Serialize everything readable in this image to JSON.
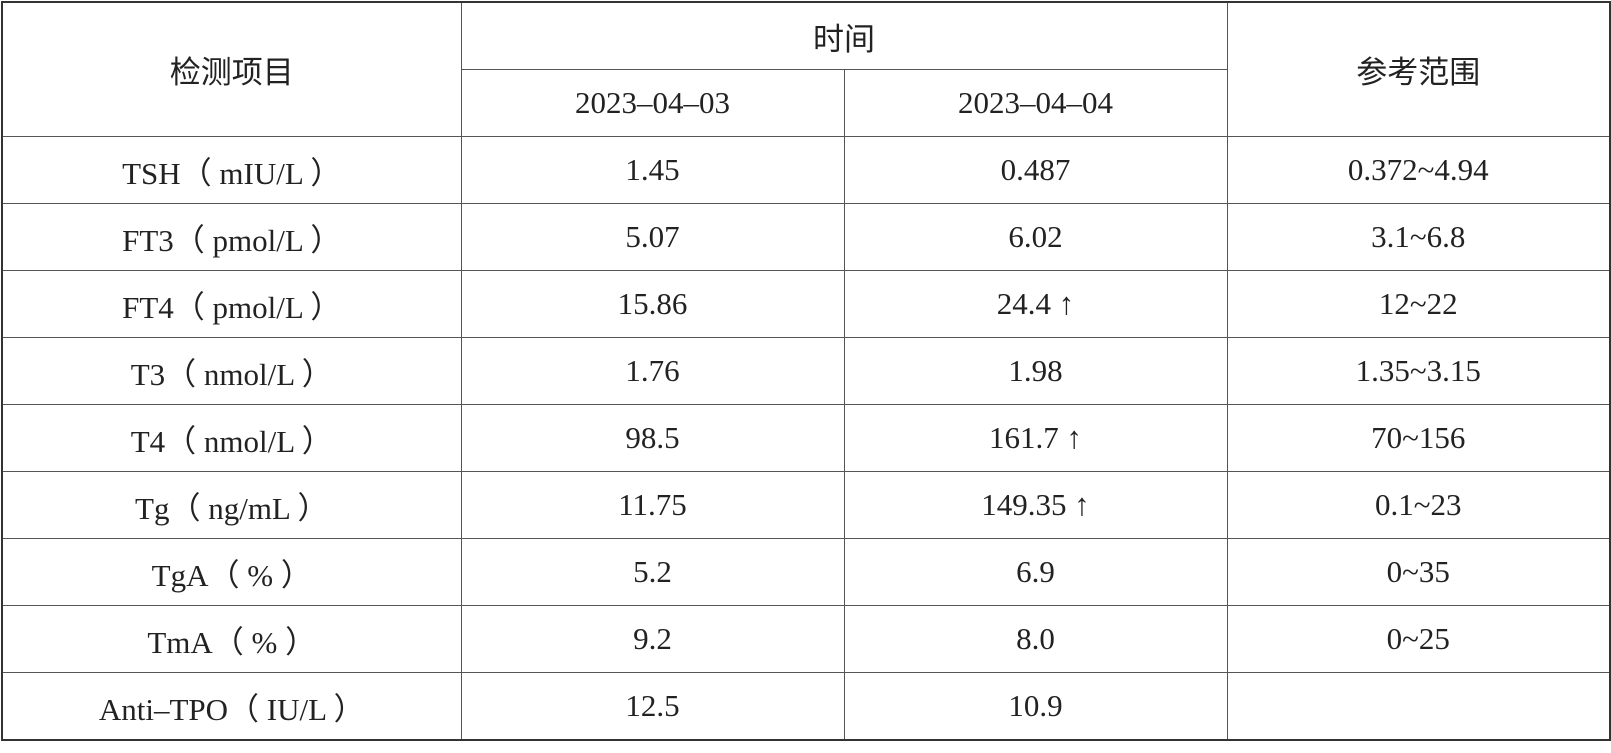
{
  "table": {
    "header": {
      "item": "检测项目",
      "time": "时间",
      "dates": [
        "2023–04–03",
        "2023–04–04"
      ],
      "reference": "参考范围"
    },
    "rows": [
      [
        "TSH（ mIU/L ）",
        "1.45",
        "0.487",
        "0.372~4.94"
      ],
      [
        "FT3（ pmol/L ）",
        "5.07",
        "6.02",
        "3.1~6.8"
      ],
      [
        "FT4（ pmol/L ）",
        "15.86",
        "24.4 ↑",
        "12~22"
      ],
      [
        "T3（ nmol/L ）",
        "1.76",
        "1.98",
        "1.35~3.15"
      ],
      [
        "T4（ nmol/L ）",
        "98.5",
        "161.7 ↑",
        "70~156"
      ],
      [
        "Tg（ ng/mL ）",
        "11.75",
        "149.35 ↑",
        "0.1~23"
      ],
      [
        "TgA（ % ）",
        "5.2",
        "6.9",
        "0~35"
      ],
      [
        "TmA（ % ）",
        "9.2",
        "8.0",
        "0~25"
      ],
      [
        "Anti–TPO（ IU/L ）",
        "12.5",
        "10.9"
      ]
    ]
  }
}
